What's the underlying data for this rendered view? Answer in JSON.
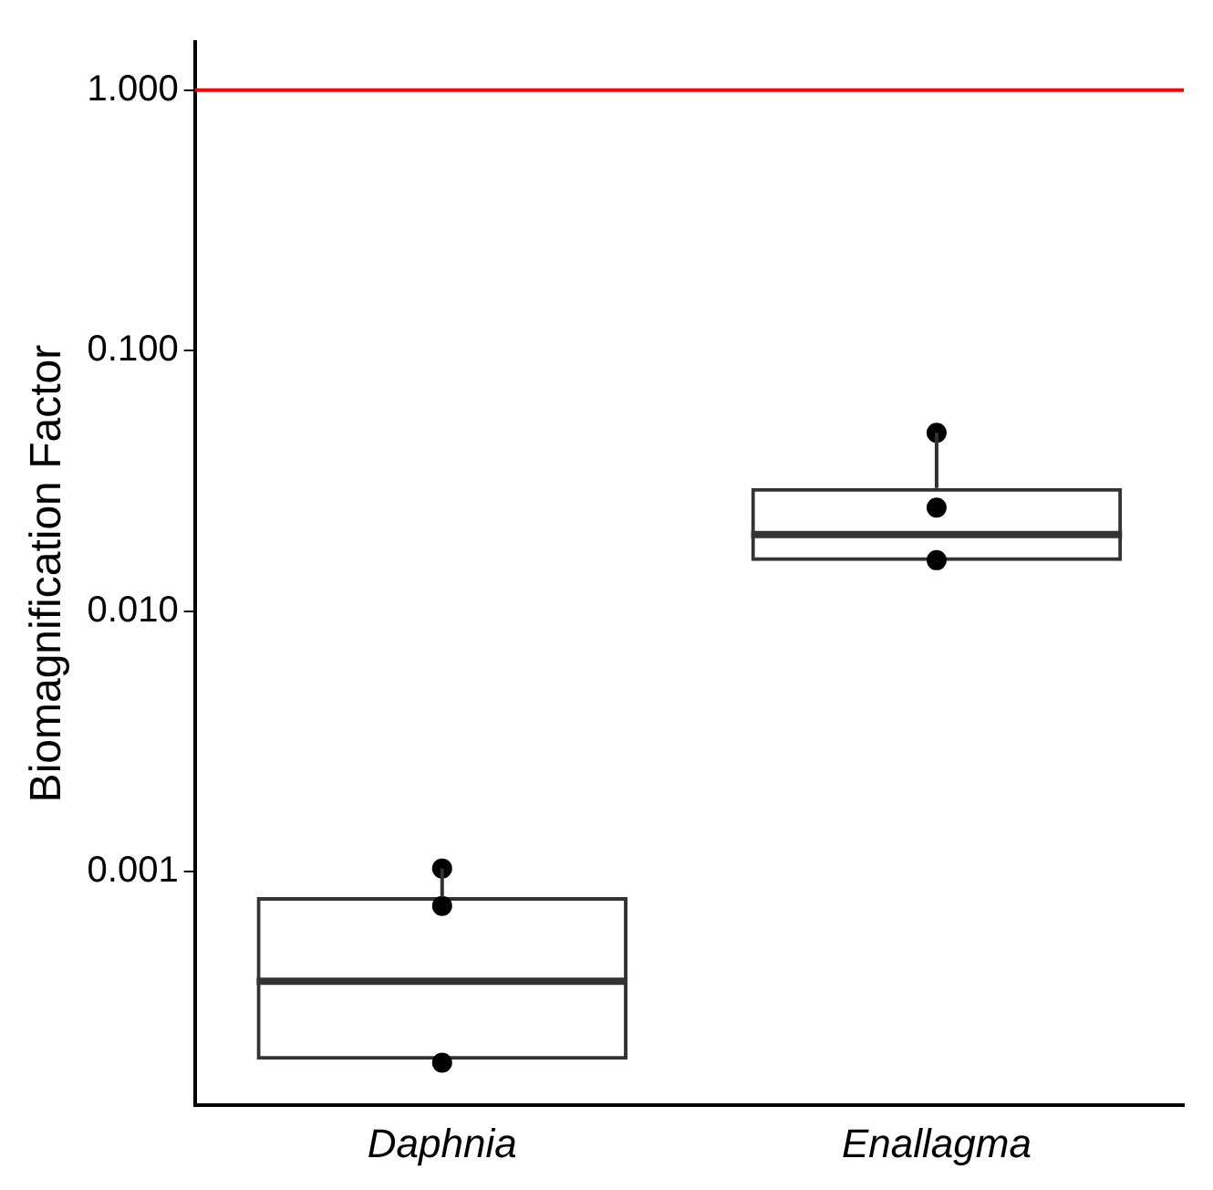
{
  "chart_data": {
    "type": "box",
    "ylabel": "Biomagnification Factor",
    "categories": [
      "Daphnia",
      "Enallagma"
    ],
    "boxes": [
      {
        "low": 0.00019,
        "q1": 0.00019,
        "median": 0.00038,
        "q3": 0.0008,
        "high": 0.00103
      },
      {
        "low": 0.0155,
        "q1": 0.0156,
        "median": 0.0197,
        "q3": 0.0297,
        "high": 0.0484
      }
    ],
    "series": [
      {
        "type": "scatter",
        "color": "#000000",
        "x": [
          "Daphnia",
          "Daphnia",
          "Daphnia",
          "Daphnia",
          "Enallagma",
          "Enallagma",
          "Enallagma",
          "Enallagma"
        ],
        "values": [
          0.00103,
          0.00074,
          null,
          0.000185,
          0.0484,
          0.025,
          null,
          0.0157
        ]
      }
    ],
    "log": "y",
    "ylim": [
      0.000127,
      1.53
    ],
    "yticks": [
      {
        "value": 0.001,
        "label": "0.001"
      },
      {
        "value": 0.01,
        "label": "0.010"
      },
      {
        "value": 0.1,
        "label": "0.100"
      },
      {
        "value": 1,
        "label": "1.000"
      }
    ],
    "ref_lines": [
      {
        "axis": "y",
        "value": 1,
        "color": "#ff0000"
      }
    ],
    "grid": false,
    "legend": false,
    "marker": "circle"
  }
}
